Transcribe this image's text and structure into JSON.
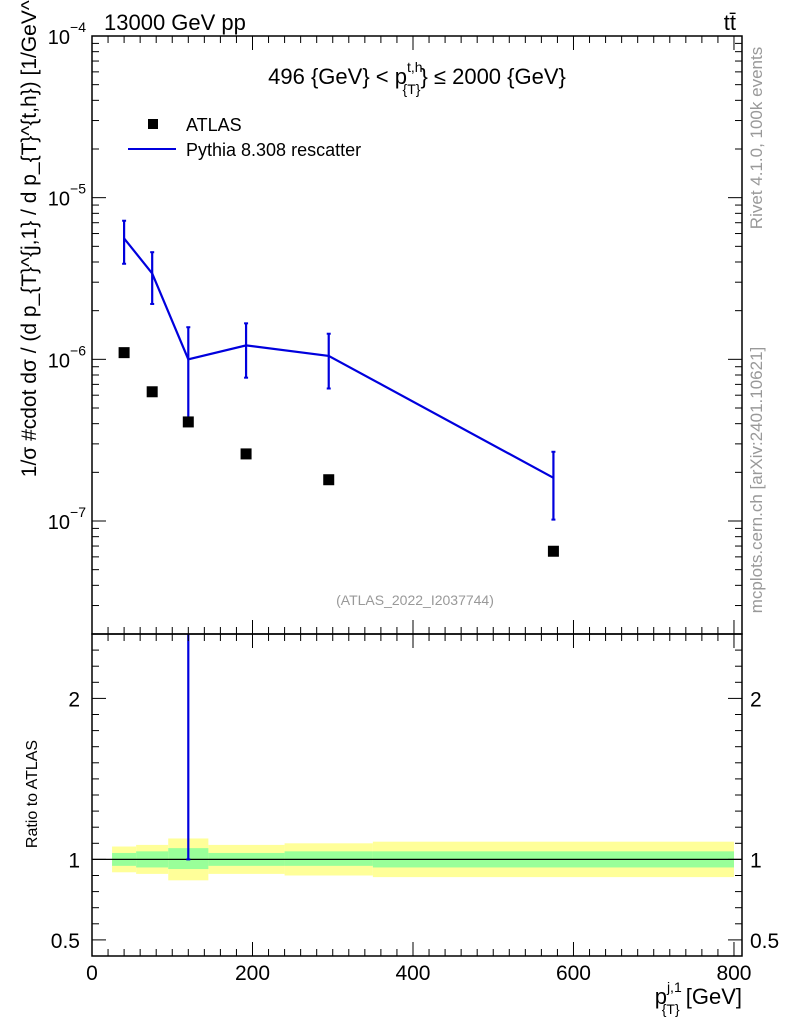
{
  "header": {
    "energy_label": "13000 GeV pp",
    "process_label": "tt̄"
  },
  "side_labels": {
    "rivet": "Rivet 4.1.0,  100k events",
    "source": "mcplots.cern.ch [arXiv:2401.10621]"
  },
  "chart_data": [
    {
      "panel": "main",
      "type": "line",
      "title": "496 {GeV} < p_{T}^{t,h} ≤ 2000 {GeV}",
      "title_parts": {
        "prefix": "496 {GeV} < p",
        "sup": "t,h",
        "sub": "{T}",
        "suffix": "} ≤ 2000 {GeV}"
      },
      "ylabel": "1/σ #cdot dσ / (d p_{T}^{j,1} / d p_{T}^{t,h}) [1/GeV^2]",
      "xlabel": "p_{T}^{j,1} [GeV]",
      "yscale": "log",
      "ylim": [
        2e-08,
        0.0001
      ],
      "xlim": [
        0,
        810
      ],
      "y_ticks": [
        {
          "value": 1e-07,
          "base": "10",
          "exp": "−7"
        },
        {
          "value": 1e-06,
          "base": "10",
          "exp": "−6"
        },
        {
          "value": 1e-05,
          "base": "10",
          "exp": "−5"
        },
        {
          "value": 0.0001,
          "base": "10",
          "exp": "−4"
        }
      ],
      "watermark": "(ATLAS_2022_I2037744)",
      "legend": [
        {
          "name": "ATLAS",
          "style": "marker"
        },
        {
          "name": "Pythia 8.308 rescatter",
          "style": "line",
          "color": "#0000dd"
        }
      ],
      "data_series": {
        "name": "ATLAS",
        "x": [
          40,
          75,
          120,
          192,
          295,
          575
        ],
        "y": [
          1.1e-06,
          6.3e-07,
          4.1e-07,
          2.6e-07,
          1.8e-07,
          6.5e-08
        ]
      },
      "mc_series": {
        "name": "Pythia 8.308 rescatter",
        "color": "#0000dd",
        "x": [
          40,
          75,
          120,
          192,
          295,
          575
        ],
        "y": [
          5.6e-06,
          3.4e-06,
          1e-06,
          1.22e-06,
          1.05e-06,
          1.85e-07
        ],
        "y_err_low": [
          3.9e-06,
          2.2e-06,
          4.3e-07,
          7.7e-07,
          6.6e-07,
          1.02e-07
        ],
        "y_err_high": [
          7.2e-06,
          4.6e-06,
          1.58e-06,
          1.67e-06,
          1.44e-06,
          2.68e-07
        ]
      }
    },
    {
      "panel": "ratio",
      "type": "area",
      "ylabel": "Ratio to ATLAS",
      "xlabel": "p_{T}^{j,1} [GeV]",
      "ylim": [
        0.4,
        2.4
      ],
      "xlim": [
        0,
        810
      ],
      "x_ticks": [
        0,
        200,
        400,
        600,
        800
      ],
      "y_ticks": [
        0.5,
        1,
        2
      ],
      "bins": [
        {
          "x_low": 25,
          "x_high": 55,
          "yellow_low": 0.92,
          "yellow_high": 1.08,
          "green_low": 0.96,
          "green_high": 1.04
        },
        {
          "x_low": 55,
          "x_high": 95,
          "yellow_low": 0.91,
          "yellow_high": 1.09,
          "green_low": 0.95,
          "green_high": 1.05
        },
        {
          "x_low": 95,
          "x_high": 145,
          "yellow_low": 0.87,
          "yellow_high": 1.13,
          "green_low": 0.94,
          "green_high": 1.07
        },
        {
          "x_low": 145,
          "x_high": 240,
          "yellow_low": 0.91,
          "yellow_high": 1.09,
          "green_low": 0.96,
          "green_high": 1.04
        },
        {
          "x_low": 240,
          "x_high": 350,
          "yellow_low": 0.9,
          "yellow_high": 1.1,
          "green_low": 0.96,
          "green_high": 1.05
        },
        {
          "x_low": 350,
          "x_high": 800,
          "yellow_low": 0.89,
          "yellow_high": 1.11,
          "green_low": 0.95,
          "green_high": 1.05
        }
      ],
      "mc_points": [
        {
          "x": 120,
          "y": 2.4,
          "y_err_low": 1.0,
          "y_err_high": 2.4
        }
      ]
    }
  ]
}
